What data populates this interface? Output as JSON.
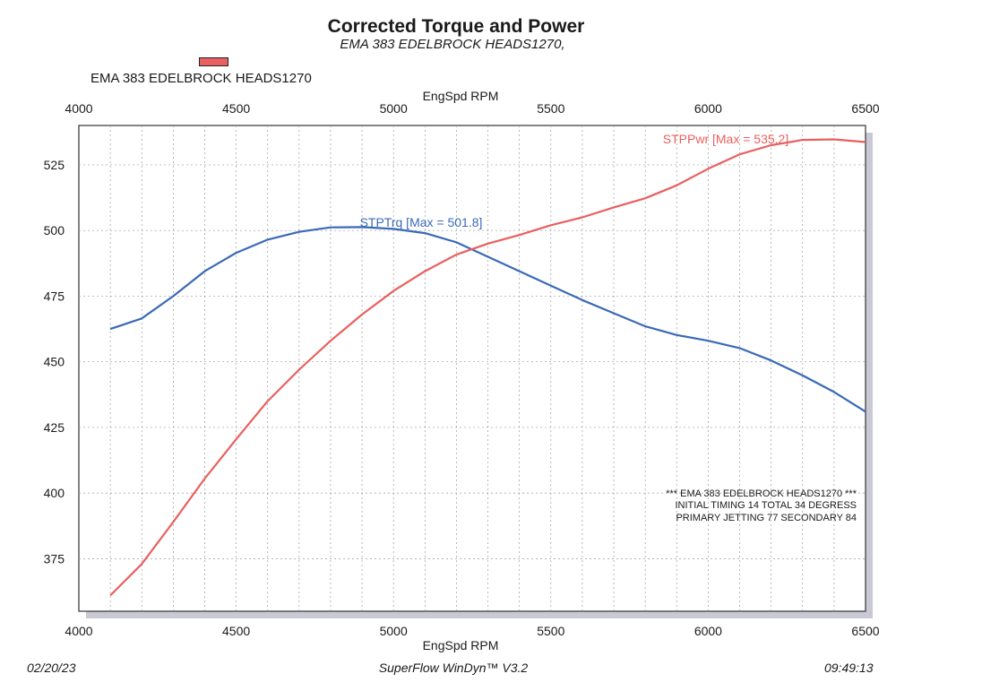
{
  "title": "Corrected Torque and Power",
  "subtitle": "EMA 383 EDELBROCK HEADS1270,",
  "legend": {
    "label": "EMA 383 EDELBROCK HEADS1270",
    "color": "#e8605f"
  },
  "footer": {
    "date": "02/20/23",
    "software": "SuperFlow WinDyn™ V3.2",
    "time": "09:49:13"
  },
  "chart_data": {
    "type": "line",
    "title": "Corrected Torque and Power",
    "xlabel": "EngSpd RPM",
    "x_top_label": "EngSpd RPM",
    "ylabel": "",
    "xlim": [
      4000,
      6500
    ],
    "ylim": [
      355,
      540
    ],
    "x_ticks": [
      4000,
      4500,
      5000,
      5500,
      6000,
      6500
    ],
    "y_ticks": [
      375,
      400,
      425,
      450,
      475,
      500,
      525
    ],
    "grid": true,
    "x": [
      4100,
      4200,
      4300,
      4400,
      4500,
      4600,
      4700,
      4800,
      4900,
      5000,
      5100,
      5200,
      5300,
      5400,
      5500,
      5600,
      5700,
      5800,
      5900,
      6000,
      6100,
      6200,
      6300,
      6400,
      6500
    ],
    "series": [
      {
        "name": "STPTrq",
        "color": "#3a6ab6",
        "label": "STPTrq [Max = 501.8]",
        "values": [
          462.5,
          466.5,
          475,
          484.5,
          491.5,
          496.5,
          499.5,
          501.2,
          501.3,
          500.6,
          499,
          495.5,
          490,
          484.5,
          479,
          473.5,
          468.5,
          463.5,
          460.2,
          458,
          455.2,
          450.5,
          444.8,
          438.5,
          431
        ]
      },
      {
        "name": "STPPwr",
        "color": "#e8605f",
        "label": "STPPwr [Max = 535.2]",
        "values": [
          361,
          373,
          389,
          405.5,
          420.5,
          435,
          447,
          458,
          468,
          477,
          484.5,
          490.8,
          495,
          498.3,
          502,
          505,
          508.8,
          512.3,
          517.2,
          523.5,
          529,
          532.5,
          534.5,
          534.7,
          533.7
        ]
      }
    ],
    "annotations": [
      "*** EMA 383 EDELBROCK HEADS1270 ***",
      "INITIAL TIMING 14 TOTAL 34 DEGRESS",
      "PRIMARY JETTING 77 SECONDARY 84"
    ]
  }
}
